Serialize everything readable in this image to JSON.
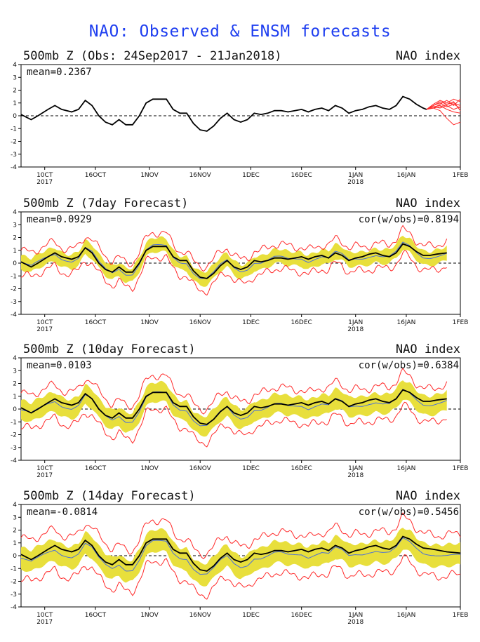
{
  "title": "NAO: Observed & ENSM forecasts",
  "x_axis": {
    "ticks": [
      "10CT",
      "16OCT",
      "1NOV",
      "16NOV",
      "1DEC",
      "16DEC",
      "1JAN",
      "16JAN",
      "1FEB"
    ],
    "tick_days": [
      7,
      22,
      38,
      53,
      68,
      83,
      99,
      114,
      130
    ],
    "year_labels": [
      {
        "label": "2017",
        "day": 7
      },
      {
        "label": "2018",
        "day": 99
      }
    ],
    "range": [
      0,
      130
    ]
  },
  "y_axis": {
    "ticks": [
      "4",
      "3",
      "2",
      "1",
      "0",
      "-1",
      "-2",
      "-3",
      "-4"
    ],
    "range": [
      -4,
      4
    ]
  },
  "colors": {
    "title": "#1f3ff0",
    "observed": "#000000",
    "member": "#ff2a2a",
    "spread": "#e8df3c",
    "mean": "#4a6fd8"
  },
  "chart_data": [
    {
      "type": "line",
      "title": "500mb Z (Obs: 24Sep2017 - 21Jan2018)",
      "index_label": "NAO index",
      "stat_mean": "mean=0.2367",
      "stat_cor": "",
      "ylim": [
        -4,
        4
      ],
      "observed": [
        [
          0,
          0.1
        ],
        [
          3,
          -0.3
        ],
        [
          5,
          0.0
        ],
        [
          8,
          0.5
        ],
        [
          10,
          0.8
        ],
        [
          12,
          0.5
        ],
        [
          15,
          0.3
        ],
        [
          17,
          0.5
        ],
        [
          19,
          1.2
        ],
        [
          21,
          0.8
        ],
        [
          23,
          0.0
        ],
        [
          25,
          -0.5
        ],
        [
          27,
          -0.7
        ],
        [
          29,
          -0.3
        ],
        [
          31,
          -0.7
        ],
        [
          33,
          -0.7
        ],
        [
          35,
          0.0
        ],
        [
          37,
          1.0
        ],
        [
          39,
          1.3
        ],
        [
          41,
          1.3
        ],
        [
          43,
          1.3
        ],
        [
          45,
          0.5
        ],
        [
          47,
          0.2
        ],
        [
          49,
          0.2
        ],
        [
          51,
          -0.6
        ],
        [
          53,
          -1.1
        ],
        [
          55,
          -1.2
        ],
        [
          57,
          -0.8
        ],
        [
          59,
          -0.2
        ],
        [
          61,
          0.2
        ],
        [
          63,
          -0.3
        ],
        [
          65,
          -0.5
        ],
        [
          67,
          -0.3
        ],
        [
          69,
          0.2
        ],
        [
          71,
          0.1
        ],
        [
          73,
          0.2
        ],
        [
          75,
          0.4
        ],
        [
          77,
          0.4
        ],
        [
          79,
          0.3
        ],
        [
          81,
          0.4
        ],
        [
          83,
          0.5
        ],
        [
          85,
          0.3
        ],
        [
          87,
          0.5
        ],
        [
          89,
          0.6
        ],
        [
          91,
          0.4
        ],
        [
          93,
          0.8
        ],
        [
          95,
          0.6
        ],
        [
          97,
          0.2
        ],
        [
          99,
          0.4
        ],
        [
          101,
          0.5
        ],
        [
          103,
          0.7
        ],
        [
          105,
          0.8
        ],
        [
          107,
          0.6
        ],
        [
          109,
          0.5
        ],
        [
          111,
          0.8
        ],
        [
          113,
          1.5
        ],
        [
          115,
          1.3
        ],
        [
          117,
          0.9
        ],
        [
          119,
          0.6
        ],
        [
          120,
          0.5
        ]
      ],
      "members": [
        [
          [
            120,
            0.5
          ],
          [
            122,
            0.8
          ],
          [
            124,
            1.1
          ],
          [
            126,
            0.9
          ],
          [
            128,
            1.0
          ],
          [
            130,
            0.8
          ]
        ],
        [
          [
            120,
            0.5
          ],
          [
            122,
            0.6
          ],
          [
            124,
            0.9
          ],
          [
            126,
            1.2
          ],
          [
            128,
            0.8
          ],
          [
            130,
            1.3
          ]
        ],
        [
          [
            120,
            0.5
          ],
          [
            122,
            0.7
          ],
          [
            124,
            0.6
          ],
          [
            126,
            0.8
          ],
          [
            128,
            0.5
          ],
          [
            130,
            0.7
          ]
        ],
        [
          [
            120,
            0.5
          ],
          [
            122,
            0.9
          ],
          [
            124,
            1.2
          ],
          [
            126,
            1.0
          ],
          [
            128,
            1.3
          ],
          [
            130,
            1.1
          ]
        ],
        [
          [
            120,
            0.5
          ],
          [
            122,
            0.7
          ],
          [
            124,
            0.8
          ],
          [
            126,
            0.5
          ],
          [
            128,
            0.3
          ],
          [
            130,
            0.2
          ]
        ],
        [
          [
            120,
            0.5
          ],
          [
            122,
            0.6
          ],
          [
            124,
            0.4
          ],
          [
            126,
            -0.2
          ],
          [
            128,
            -0.7
          ],
          [
            130,
            -0.5
          ]
        ],
        [
          [
            120,
            0.5
          ],
          [
            122,
            0.8
          ],
          [
            124,
            1.0
          ],
          [
            126,
            0.7
          ],
          [
            128,
            0.9
          ],
          [
            130,
            0.6
          ]
        ],
        [
          [
            120,
            0.5
          ],
          [
            122,
            0.6
          ],
          [
            124,
            0.7
          ],
          [
            126,
            0.9
          ],
          [
            128,
            1.1
          ],
          [
            130,
            0.4
          ]
        ]
      ]
    },
    {
      "type": "line",
      "title": "500mb Z (7day Forecast)",
      "index_label": "NAO index",
      "stat_mean": "mean=0.0929",
      "stat_cor": "cor(w/obs)=0.8194",
      "ylim": [
        -4,
        4
      ],
      "forecast_end": 126,
      "observed": [
        [
          0,
          0.1
        ],
        [
          3,
          -0.3
        ],
        [
          5,
          0.0
        ],
        [
          8,
          0.5
        ],
        [
          10,
          0.8
        ],
        [
          12,
          0.5
        ],
        [
          15,
          0.3
        ],
        [
          17,
          0.5
        ],
        [
          19,
          1.2
        ],
        [
          21,
          0.8
        ],
        [
          23,
          0.0
        ],
        [
          25,
          -0.5
        ],
        [
          27,
          -0.7
        ],
        [
          29,
          -0.3
        ],
        [
          31,
          -0.7
        ],
        [
          33,
          -0.7
        ],
        [
          35,
          0.0
        ],
        [
          37,
          1.0
        ],
        [
          39,
          1.3
        ],
        [
          41,
          1.3
        ],
        [
          43,
          1.3
        ],
        [
          45,
          0.5
        ],
        [
          47,
          0.2
        ],
        [
          49,
          0.2
        ],
        [
          51,
          -0.6
        ],
        [
          53,
          -1.1
        ],
        [
          55,
          -1.2
        ],
        [
          57,
          -0.8
        ],
        [
          59,
          -0.2
        ],
        [
          61,
          0.2
        ],
        [
          63,
          -0.3
        ],
        [
          65,
          -0.5
        ],
        [
          67,
          -0.3
        ],
        [
          69,
          0.2
        ],
        [
          71,
          0.1
        ],
        [
          73,
          0.2
        ],
        [
          75,
          0.4
        ],
        [
          77,
          0.4
        ],
        [
          79,
          0.3
        ],
        [
          81,
          0.4
        ],
        [
          83,
          0.5
        ],
        [
          85,
          0.3
        ],
        [
          87,
          0.5
        ],
        [
          89,
          0.6
        ],
        [
          91,
          0.4
        ],
        [
          93,
          0.8
        ],
        [
          95,
          0.6
        ],
        [
          97,
          0.2
        ],
        [
          99,
          0.4
        ],
        [
          101,
          0.5
        ],
        [
          103,
          0.7
        ],
        [
          105,
          0.8
        ],
        [
          107,
          0.6
        ],
        [
          109,
          0.5
        ],
        [
          111,
          0.8
        ],
        [
          113,
          1.5
        ],
        [
          115,
          1.3
        ],
        [
          117,
          0.9
        ],
        [
          119,
          0.6
        ],
        [
          121,
          0.6
        ],
        [
          123,
          0.7
        ],
        [
          126,
          0.8
        ]
      ],
      "spread_half_width": 0.55,
      "red_half_width": 0.95,
      "ensemble_mean_shift": -0.05
    },
    {
      "type": "line",
      "title": "500mb Z (10day Forecast)",
      "index_label": "NAO index",
      "stat_mean": "mean=0.0103",
      "stat_cor": "cor(w/obs)=0.6384",
      "ylim": [
        -4,
        4
      ],
      "forecast_end": 126,
      "observed": [
        [
          0,
          0.1
        ],
        [
          3,
          -0.3
        ],
        [
          5,
          0.0
        ],
        [
          8,
          0.5
        ],
        [
          10,
          0.8
        ],
        [
          12,
          0.5
        ],
        [
          15,
          0.3
        ],
        [
          17,
          0.5
        ],
        [
          19,
          1.2
        ],
        [
          21,
          0.8
        ],
        [
          23,
          0.0
        ],
        [
          25,
          -0.5
        ],
        [
          27,
          -0.7
        ],
        [
          29,
          -0.3
        ],
        [
          31,
          -0.7
        ],
        [
          33,
          -0.7
        ],
        [
          35,
          0.0
        ],
        [
          37,
          1.0
        ],
        [
          39,
          1.3
        ],
        [
          41,
          1.3
        ],
        [
          43,
          1.3
        ],
        [
          45,
          0.5
        ],
        [
          47,
          0.2
        ],
        [
          49,
          0.2
        ],
        [
          51,
          -0.6
        ],
        [
          53,
          -1.1
        ],
        [
          55,
          -1.2
        ],
        [
          57,
          -0.8
        ],
        [
          59,
          -0.2
        ],
        [
          61,
          0.2
        ],
        [
          63,
          -0.3
        ],
        [
          65,
          -0.5
        ],
        [
          67,
          -0.3
        ],
        [
          69,
          0.2
        ],
        [
          71,
          0.1
        ],
        [
          73,
          0.2
        ],
        [
          75,
          0.4
        ],
        [
          77,
          0.4
        ],
        [
          79,
          0.3
        ],
        [
          81,
          0.4
        ],
        [
          83,
          0.5
        ],
        [
          85,
          0.3
        ],
        [
          87,
          0.5
        ],
        [
          89,
          0.6
        ],
        [
          91,
          0.4
        ],
        [
          93,
          0.8
        ],
        [
          95,
          0.6
        ],
        [
          97,
          0.2
        ],
        [
          99,
          0.4
        ],
        [
          101,
          0.5
        ],
        [
          103,
          0.7
        ],
        [
          105,
          0.8
        ],
        [
          107,
          0.6
        ],
        [
          109,
          0.5
        ],
        [
          111,
          0.8
        ],
        [
          113,
          1.5
        ],
        [
          115,
          1.3
        ],
        [
          117,
          0.9
        ],
        [
          119,
          0.6
        ],
        [
          121,
          0.6
        ],
        [
          123,
          0.7
        ],
        [
          126,
          0.8
        ]
      ],
      "spread_half_width": 0.75,
      "red_half_width": 1.3,
      "ensemble_mean_shift": -0.15
    },
    {
      "type": "line",
      "title": "500mb Z (14day Forecast)",
      "index_label": "NAO index",
      "stat_mean": "mean=-0.0814",
      "stat_cor": "cor(w/obs)=0.5456",
      "ylim": [
        -4,
        4
      ],
      "forecast_end": 130,
      "observed": [
        [
          0,
          0.1
        ],
        [
          3,
          -0.3
        ],
        [
          5,
          0.0
        ],
        [
          8,
          0.5
        ],
        [
          10,
          0.8
        ],
        [
          12,
          0.5
        ],
        [
          15,
          0.3
        ],
        [
          17,
          0.5
        ],
        [
          19,
          1.2
        ],
        [
          21,
          0.8
        ],
        [
          23,
          0.0
        ],
        [
          25,
          -0.5
        ],
        [
          27,
          -0.7
        ],
        [
          29,
          -0.3
        ],
        [
          31,
          -0.7
        ],
        [
          33,
          -0.7
        ],
        [
          35,
          0.0
        ],
        [
          37,
          1.0
        ],
        [
          39,
          1.3
        ],
        [
          41,
          1.3
        ],
        [
          43,
          1.3
        ],
        [
          45,
          0.5
        ],
        [
          47,
          0.2
        ],
        [
          49,
          0.2
        ],
        [
          51,
          -0.6
        ],
        [
          53,
          -1.1
        ],
        [
          55,
          -1.2
        ],
        [
          57,
          -0.8
        ],
        [
          59,
          -0.2
        ],
        [
          61,
          0.2
        ],
        [
          63,
          -0.3
        ],
        [
          65,
          -0.5
        ],
        [
          67,
          -0.3
        ],
        [
          69,
          0.2
        ],
        [
          71,
          0.1
        ],
        [
          73,
          0.2
        ],
        [
          75,
          0.4
        ],
        [
          77,
          0.4
        ],
        [
          79,
          0.3
        ],
        [
          81,
          0.4
        ],
        [
          83,
          0.5
        ],
        [
          85,
          0.3
        ],
        [
          87,
          0.5
        ],
        [
          89,
          0.6
        ],
        [
          91,
          0.4
        ],
        [
          93,
          0.8
        ],
        [
          95,
          0.6
        ],
        [
          97,
          0.2
        ],
        [
          99,
          0.4
        ],
        [
          101,
          0.5
        ],
        [
          103,
          0.7
        ],
        [
          105,
          0.8
        ],
        [
          107,
          0.6
        ],
        [
          109,
          0.5
        ],
        [
          111,
          0.8
        ],
        [
          113,
          1.5
        ],
        [
          115,
          1.3
        ],
        [
          117,
          0.9
        ],
        [
          119,
          0.6
        ],
        [
          122,
          0.5
        ],
        [
          126,
          0.3
        ],
        [
          130,
          0.2
        ]
      ],
      "spread_half_width": 0.85,
      "red_half_width": 1.6,
      "ensemble_mean_shift": -0.3
    }
  ]
}
